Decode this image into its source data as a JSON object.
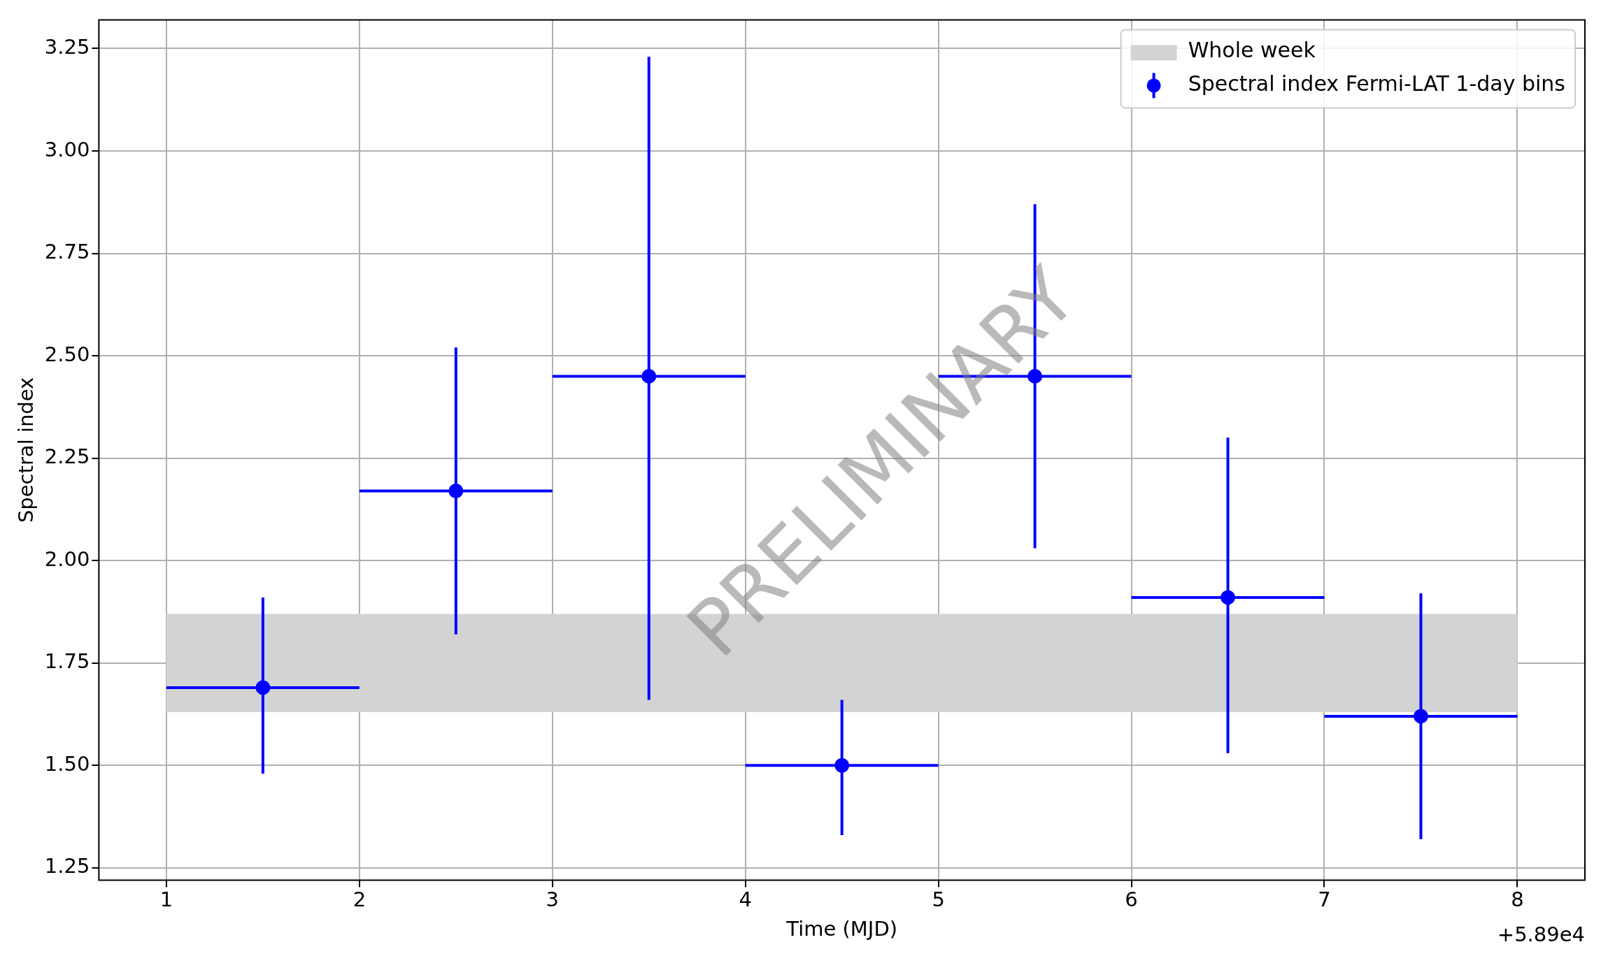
{
  "chart_data": {
    "type": "scatter",
    "xlabel": "Time (MJD)",
    "ylabel": "Spectral index",
    "annotations": [
      "PRELIMINARY",
      "+5.89e4"
    ],
    "x": [
      1.5,
      2.5,
      3.5,
      4.5,
      5.5,
      6.5,
      7.5
    ],
    "series": [
      {
        "name": "Spectral index Fermi-LAT 1-day bins",
        "color": "#0000ff",
        "values": [
          1.69,
          2.17,
          2.45,
          1.5,
          2.45,
          1.91,
          1.62
        ],
        "errors": [
          [
            1.48,
            1.91
          ],
          [
            1.82,
            2.52
          ],
          [
            1.66,
            3.23
          ],
          [
            1.33,
            1.66
          ],
          [
            2.03,
            2.87
          ],
          [
            1.53,
            2.3
          ],
          [
            1.32,
            1.92
          ]
        ],
        "xerrors": [
          0.5,
          0.5,
          0.5,
          0.5,
          0.5,
          0.5,
          0.5
        ]
      }
    ],
    "bands": [
      {
        "axis": "y",
        "from": 1.63,
        "to": 1.87,
        "label": "Whole week",
        "color": "#d3d3d3"
      }
    ],
    "xlim": [
      0.65,
      8.35
    ],
    "xticks": [
      1,
      2,
      3,
      4,
      5,
      6,
      7,
      8
    ],
    "ylim": [
      1.22,
      3.32
    ],
    "yticks": [
      {
        "value": 1.25,
        "label": "1.25"
      },
      {
        "value": 1.5,
        "label": "1.50"
      },
      {
        "value": 1.75,
        "label": "1.75"
      },
      {
        "value": 2.0,
        "label": "2.00"
      },
      {
        "value": 2.25,
        "label": "2.25"
      },
      {
        "value": 2.5,
        "label": "2.50"
      },
      {
        "value": 2.75,
        "label": "2.75"
      },
      {
        "value": 3.0,
        "label": "3.00"
      },
      {
        "value": 3.25,
        "label": "3.25"
      }
    ],
    "grid": true,
    "legend": "top right",
    "marker": "circle"
  }
}
